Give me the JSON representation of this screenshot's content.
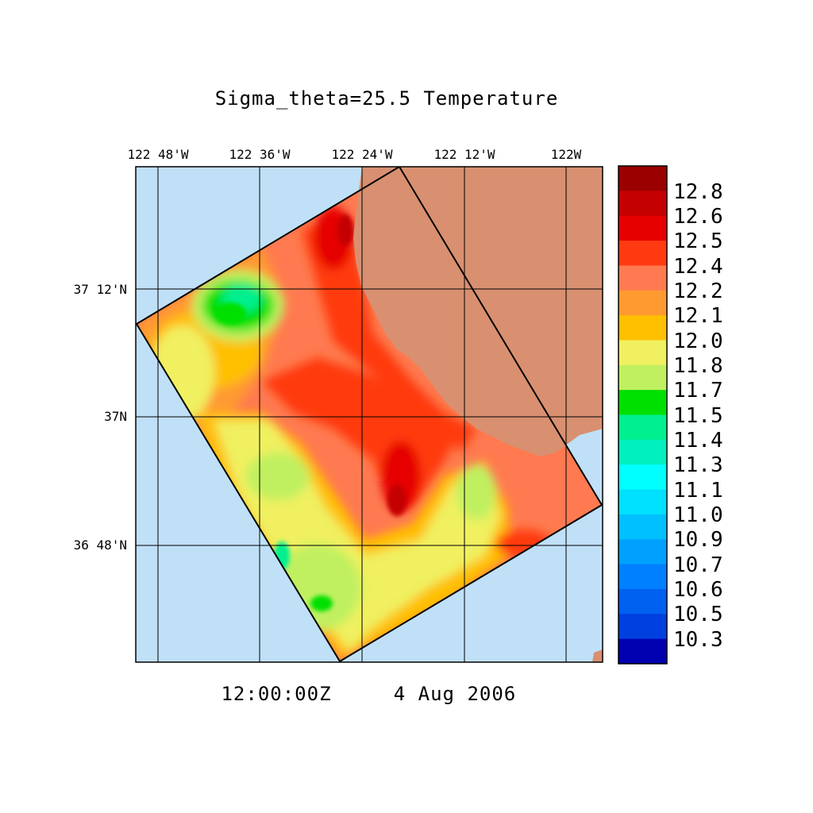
{
  "map": {
    "title": "Sigma_theta=25.5 Temperature",
    "timestamp": "12:00:00Z",
    "date": "4 Aug 2006",
    "lon_ticks": [
      "122 48'W",
      "122 36'W",
      "122 24'W",
      "122 12'W",
      "122W"
    ],
    "lat_ticks": [
      "37 12'N",
      "37N",
      "36 48'N"
    ],
    "colors": {
      "ocean": "#c0e0f8",
      "land": "#d89070",
      "grid": "#000000"
    }
  },
  "colorbar": {
    "labels": [
      "12.8",
      "12.6",
      "12.5",
      "12.4",
      "12.2",
      "12.1",
      "12.0",
      "11.8",
      "11.7",
      "11.5",
      "11.4",
      "11.3",
      "11.1",
      "11.0",
      "10.9",
      "10.7",
      "10.6",
      "10.5",
      "10.3"
    ],
    "colors": [
      "#9a0000",
      "#c40000",
      "#e60000",
      "#ff3a10",
      "#ff7a50",
      "#ff9a30",
      "#ffc000",
      "#f0f060",
      "#c0f060",
      "#00e000",
      "#00f090",
      "#00f0c0",
      "#00ffff",
      "#00e0ff",
      "#00c0ff",
      "#00a0ff",
      "#0080ff",
      "#0060f0",
      "#0040e0",
      "#0000b0"
    ]
  }
}
